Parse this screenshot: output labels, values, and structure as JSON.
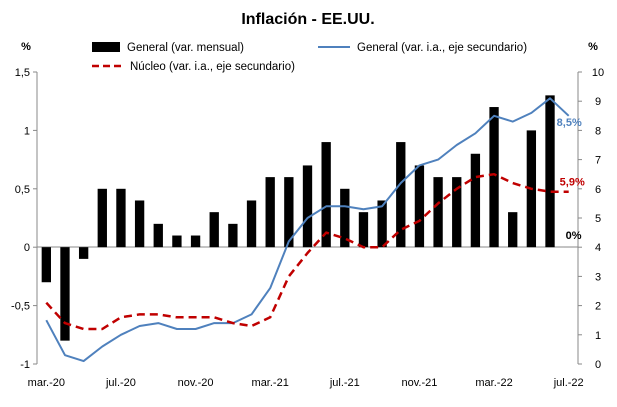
{
  "chart_data": {
    "type": "bar+line",
    "title": "Inflación - EE.UU.",
    "ylabel_left": "%",
    "ylabel_right": "%",
    "ylim_left": [
      -1,
      1.5
    ],
    "ylim_right": [
      0,
      10
    ],
    "left_ticks": [
      1.5,
      1,
      0.5,
      0,
      -0.5,
      -1
    ],
    "left_tick_labels": [
      "1,5",
      "1",
      "0,5",
      "0",
      "-0,5",
      "-1"
    ],
    "right_ticks": [
      10,
      9,
      8,
      7,
      6,
      5,
      4,
      3,
      2,
      1,
      0
    ],
    "right_tick_labels": [
      "10",
      "9",
      "8",
      "7",
      "6",
      "5",
      "4",
      "3",
      "2",
      "1",
      "0"
    ],
    "categories": [
      "mar.-20",
      "abr.-20",
      "may.-20",
      "jun.-20",
      "jul.-20",
      "ago.-20",
      "sep.-20",
      "oct.-20",
      "nov.-20",
      "dic.-20",
      "ene.-21",
      "feb.-21",
      "mar.-21",
      "abr.-21",
      "may.-21",
      "jun.-21",
      "jul.-21",
      "ago.-21",
      "sep.-21",
      "oct.-21",
      "nov.-21",
      "dic.-21",
      "ene.-22",
      "feb.-22",
      "mar.-22",
      "abr.-22",
      "may.-22",
      "jun.-22",
      "jul.-22"
    ],
    "x_tick_labels": [
      {
        "index": 0,
        "label": "mar.-20"
      },
      {
        "index": 4,
        "label": "jul.-20"
      },
      {
        "index": 8,
        "label": "nov.-20"
      },
      {
        "index": 12,
        "label": "mar.-21"
      },
      {
        "index": 16,
        "label": "jul.-21"
      },
      {
        "index": 20,
        "label": "nov.-21"
      },
      {
        "index": 24,
        "label": "mar.-22"
      },
      {
        "index": 28,
        "label": "jul.-22"
      }
    ],
    "series": [
      {
        "name": "General (var. mensual)",
        "type": "bar",
        "axis": "left",
        "color": "#000000",
        "values": [
          -0.3,
          -0.8,
          -0.1,
          0.5,
          0.5,
          0.4,
          0.2,
          0.1,
          0.1,
          0.3,
          0.2,
          0.4,
          0.6,
          0.6,
          0.7,
          0.9,
          0.5,
          0.3,
          0.4,
          0.9,
          0.7,
          0.6,
          0.6,
          0.8,
          1.2,
          0.3,
          1.0,
          1.3,
          0.0
        ]
      },
      {
        "name": "General (var. i.a., eje secundario)",
        "type": "line",
        "axis": "right",
        "color": "#4f81bd",
        "values": [
          1.5,
          0.3,
          0.1,
          0.6,
          1.0,
          1.3,
          1.4,
          1.2,
          1.2,
          1.4,
          1.4,
          1.7,
          2.6,
          4.2,
          5.0,
          5.4,
          5.4,
          5.3,
          5.4,
          6.2,
          6.8,
          7.0,
          7.5,
          7.9,
          8.5,
          8.3,
          8.6,
          9.1,
          8.5
        ]
      },
      {
        "name": "Núcleo (var. i.a., eje secundario)",
        "type": "line",
        "axis": "right",
        "color": "#c00000",
        "dash": "dashed",
        "values": [
          2.1,
          1.4,
          1.2,
          1.2,
          1.6,
          1.7,
          1.7,
          1.6,
          1.6,
          1.6,
          1.4,
          1.3,
          1.6,
          3.0,
          3.8,
          4.5,
          4.3,
          4.0,
          4.0,
          4.6,
          4.9,
          5.5,
          6.0,
          6.4,
          6.5,
          6.2,
          6.0,
          5.9,
          5.9
        ]
      }
    ],
    "annotations": [
      {
        "text": "8,5%",
        "series": 1,
        "index": 28,
        "color": "#4f81bd"
      },
      {
        "text": "5,9%",
        "series": 2,
        "index": 28,
        "color": "#c00000"
      },
      {
        "text": "0%",
        "series": 0,
        "index": 28,
        "color": "#000000"
      }
    ],
    "legend": {
      "position": "top",
      "entries": [
        {
          "label": "General (var. mensual)",
          "series": 0
        },
        {
          "label": "General (var. i.a., eje secundario)",
          "series": 1
        },
        {
          "label": "Núcleo (var. i.a., eje secundario)",
          "series": 2
        }
      ]
    },
    "grid": false
  }
}
